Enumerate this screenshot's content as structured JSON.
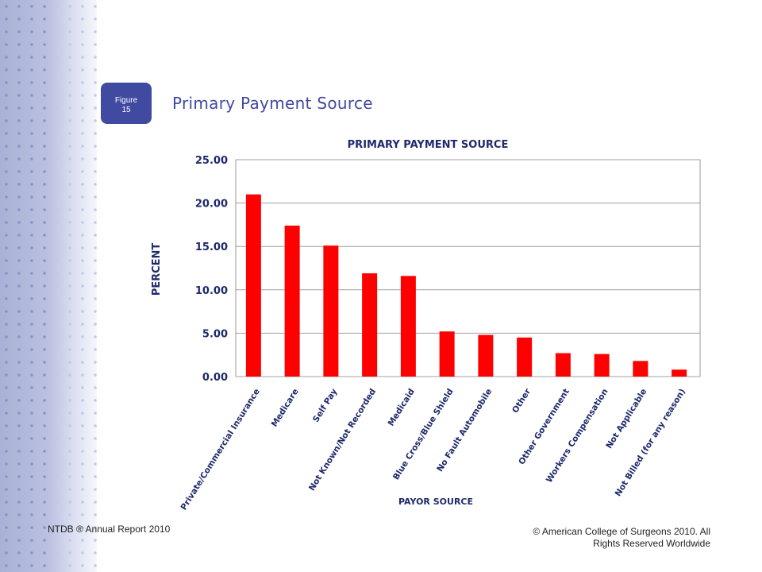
{
  "slide": {
    "badge_line1": "Figure",
    "badge_line2": "15",
    "title": "Primary Payment Source",
    "footer_left": "NTDB ® Annual Report 2010",
    "footer_right_line1": "© American College of Surgeons 2010.  All",
    "footer_right_line2": "Rights Reserved Worldwide",
    "accent_color": "#3f4aa0"
  },
  "chart_data": {
    "type": "bar",
    "title": "PRIMARY PAYMENT SOURCE",
    "xlabel": "PAYOR SOURCE",
    "ylabel": "PERCENT",
    "ylim": [
      0,
      25
    ],
    "yticks": [
      "0.00",
      "5.00",
      "10.00",
      "15.00",
      "20.00",
      "25.00"
    ],
    "grid": true,
    "bar_color": "#ff0000",
    "categories": [
      "Private/Commercial Insurance",
      "Medicare",
      "Self Pay",
      "Not Known/Not Recorded",
      "Medicaid",
      "Blue Cross/Blue Shield",
      "No Fault Automobile",
      "Other",
      "Other Government",
      "Workers Compensation",
      "Not Applicable",
      "Not Billed (for any reason)"
    ],
    "values": [
      21.0,
      17.4,
      15.1,
      11.9,
      11.6,
      5.2,
      4.8,
      4.5,
      2.7,
      2.6,
      1.8,
      0.8
    ]
  }
}
